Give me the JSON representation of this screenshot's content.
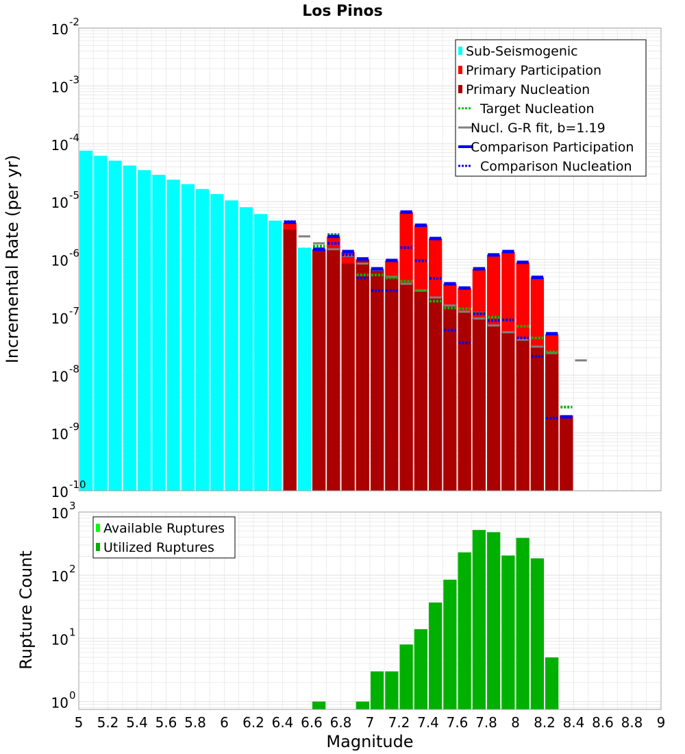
{
  "colors": {
    "sub_seismogenic": "#00ffff",
    "primary_participation": "#ff0000",
    "primary_nucleation": "#aa0000",
    "target_nucleation": "#00bb00",
    "gr_fit": "#808080",
    "comparison_participation": "#0000ff",
    "comparison_nucleation": "#0000ff",
    "available_ruptures": "#00ff00",
    "utilized_ruptures": "#00b000",
    "grid": "#e6e6e6"
  },
  "chart_data": [
    {
      "type": "bar",
      "title": "Los Pinos",
      "xlabel": "",
      "ylabel": "Incremental Rate (per yr)",
      "xlim": [
        5,
        9
      ],
      "ylim": [
        1e-10,
        0.01
      ],
      "yscale": "log",
      "y_tick_labels": [
        {
          "base": "10",
          "exp": "-10"
        },
        {
          "base": "10",
          "exp": "-9"
        },
        {
          "base": "10",
          "exp": "-8"
        },
        {
          "base": "10",
          "exp": "-7"
        },
        {
          "base": "10",
          "exp": "-6"
        },
        {
          "base": "10",
          "exp": "-5"
        },
        {
          "base": "10",
          "exp": "-4"
        },
        {
          "base": "10",
          "exp": "-3"
        },
        {
          "base": "10",
          "exp": "-2"
        }
      ],
      "grid": true,
      "legend_position": "top-right",
      "legend": [
        {
          "label": "Sub-Seismogenic",
          "style": "square",
          "color_key": "sub_seismogenic"
        },
        {
          "label": "Primary Participation",
          "style": "square",
          "color_key": "primary_participation"
        },
        {
          "label": "Primary Nucleation",
          "style": "square",
          "color_key": "primary_nucleation"
        },
        {
          "label": "Target Nucleation",
          "style": "dotted",
          "color_key": "target_nucleation"
        },
        {
          "label": "Nucl. G-R fit, b=1.19",
          "style": "solid",
          "color_key": "gr_fit"
        },
        {
          "label": "Comparison Participation",
          "style": "thick",
          "color_key": "comparison_participation"
        },
        {
          "label": "Comparison Nucleation",
          "style": "dotted",
          "color_key": "comparison_nucleation"
        }
      ],
      "bin_width": 0.1,
      "series": [
        {
          "name": "Sub-Seismogenic",
          "x": [
            5.05,
            5.15,
            5.25,
            5.35,
            5.45,
            5.55,
            5.65,
            5.75,
            5.85,
            5.95,
            6.05,
            6.15,
            6.25,
            6.35,
            6.45,
            6.55
          ],
          "values": [
            7.6e-05,
            6.2e-05,
            5.1e-05,
            4.2e-05,
            3.5e-05,
            2.9e-05,
            2.4e-05,
            2e-05,
            1.65e-05,
            1.35e-05,
            1.05e-05,
            8e-06,
            6.1e-06,
            4.7e-06,
            3.8e-06,
            1.6e-06
          ]
        },
        {
          "name": "Primary Participation",
          "x": [
            6.45,
            6.65,
            6.75,
            6.85,
            6.95,
            7.05,
            7.15,
            7.25,
            7.35,
            7.45,
            7.55,
            7.65,
            7.75,
            7.85,
            7.95,
            8.05,
            8.15,
            8.25,
            8.35
          ],
          "values": [
            4.3e-06,
            1.5e-06,
            2.5e-06,
            1.35e-06,
            1e-06,
            6.8e-07,
            9.5e-07,
            6.6e-06,
            3.9e-06,
            2.3e-06,
            3.8e-07,
            3.2e-07,
            6.8e-07,
            1.2e-06,
            1.35e-06,
            8.8e-07,
            4.9e-07,
            5.1e-08,
            2e-09
          ]
        },
        {
          "name": "Primary Nucleation",
          "x": [
            6.45,
            6.65,
            6.75,
            6.85,
            6.95,
            7.05,
            7.15,
            7.25,
            7.35,
            7.45,
            7.55,
            7.65,
            7.75,
            7.85,
            7.95,
            8.05,
            8.15,
            8.25,
            8.35
          ],
          "values": [
            3.3e-06,
            1.5e-06,
            1.5e-06,
            8.5e-07,
            1e-06,
            6.8e-07,
            5e-07,
            4e-07,
            2.8e-07,
            2.2e-07,
            1.6e-07,
            1.3e-07,
            9.5e-08,
            7e-08,
            5.5e-08,
            4.2e-08,
            3e-08,
            2.4e-08,
            2e-09
          ]
        },
        {
          "name": "Target Nucleation",
          "x": [
            6.65,
            6.75,
            6.85,
            6.95,
            7.05,
            7.15,
            7.25,
            7.35,
            7.45,
            7.55,
            7.65,
            7.75,
            7.85,
            7.95,
            8.05,
            8.15,
            8.25,
            8.35
          ],
          "values": [
            1.7e-06,
            2.7e-06,
            1.3e-06,
            5.4e-07,
            5.4e-07,
            4.8e-07,
            4.2e-07,
            2.9e-07,
            1.9e-07,
            1.45e-07,
            1.4e-07,
            1.2e-07,
            1e-07,
            9e-08,
            7e-08,
            4.4e-08,
            2.5e-08,
            2.8e-09
          ]
        },
        {
          "name": "Nucl. G-R fit, b=1.19",
          "x": [
            6.55,
            6.65,
            6.75,
            6.85,
            6.95,
            7.05,
            7.15,
            7.25,
            7.35,
            7.45,
            7.55,
            7.65,
            7.75,
            7.85,
            7.95,
            8.05,
            8.15,
            8.25,
            8.45
          ],
          "values": [
            2.5e-06,
            1.9e-06,
            1.5e-06,
            1.15e-06,
            8.5e-07,
            6.6e-07,
            5e-07,
            3.8e-07,
            2.9e-07,
            2.2e-07,
            1.6e-07,
            1.25e-07,
            9.5e-08,
            7.2e-08,
            5.5e-08,
            4.1e-08,
            3.1e-08,
            2.4e-08,
            1.8e-08
          ]
        },
        {
          "name": "Comparison Participation",
          "x": [
            6.45,
            6.65,
            6.75,
            6.85,
            6.95,
            7.05,
            7.15,
            7.25,
            7.35,
            7.45,
            7.55,
            7.65,
            7.75,
            7.85,
            7.95,
            8.05,
            8.15,
            8.25,
            8.35
          ],
          "values": [
            4.4e-06,
            1.5e-06,
            2.5e-06,
            1.37e-06,
            1.02e-06,
            6.9e-07,
            9.6e-07,
            6.6e-06,
            3.9e-06,
            2.3e-06,
            3.8e-07,
            3.2e-07,
            6.9e-07,
            1.2e-06,
            1.37e-06,
            8.9e-07,
            4.9e-07,
            5.2e-08,
            1.9e-09
          ]
        },
        {
          "name": "Comparison Nucleation",
          "x": [
            6.45,
            6.65,
            6.75,
            6.85,
            6.95,
            7.05,
            7.15,
            7.25,
            7.35,
            7.45,
            7.55,
            7.65,
            7.75,
            7.85,
            7.95,
            8.05,
            8.15,
            8.25
          ],
          "values": [
            4.5e-06,
            1.5e-06,
            1.9e-06,
            1.2e-06,
            4.8e-07,
            2.9e-07,
            2.9e-07,
            1.6e-06,
            9.5e-07,
            4.7e-07,
            6e-08,
            3.6e-08,
            1.15e-07,
            8.8e-08,
            9e-08,
            4.4e-08,
            2.1e-08,
            1.8e-09
          ]
        }
      ]
    },
    {
      "type": "bar",
      "title": "",
      "xlabel": "Magnitude",
      "ylabel": "Rupture Count",
      "xlim": [
        5,
        9
      ],
      "ylim": [
        0.75,
        1000
      ],
      "yscale": "log",
      "y_tick_labels": [
        {
          "base": "10",
          "exp": "0"
        },
        {
          "base": "10",
          "exp": "1"
        },
        {
          "base": "10",
          "exp": "2"
        },
        {
          "base": "10",
          "exp": "3"
        }
      ],
      "x_tick_labels": [
        "5",
        "5.2",
        "5.4",
        "5.6",
        "5.8",
        "6",
        "6.2",
        "6.4",
        "6.6",
        "6.8",
        "7",
        "7.2",
        "7.4",
        "7.6",
        "7.8",
        "8",
        "8.2",
        "8.4",
        "8.6",
        "8.8",
        "9"
      ],
      "grid": true,
      "legend_position": "top-left",
      "legend": [
        {
          "label": "Available Ruptures",
          "style": "square",
          "color_key": "available_ruptures"
        },
        {
          "label": "Utilized Ruptures",
          "style": "square",
          "color_key": "utilized_ruptures"
        }
      ],
      "bin_width": 0.1,
      "series": [
        {
          "name": "Utilized Ruptures",
          "x": [
            6.65,
            6.95,
            7.05,
            7.15,
            7.25,
            7.35,
            7.45,
            7.55,
            7.65,
            7.75,
            7.85,
            7.95,
            8.05,
            8.15,
            8.25
          ],
          "values": [
            1,
            1,
            3,
            3,
            8,
            14,
            37,
            85,
            230,
            520,
            480,
            205,
            390,
            185,
            5
          ]
        }
      ]
    }
  ]
}
